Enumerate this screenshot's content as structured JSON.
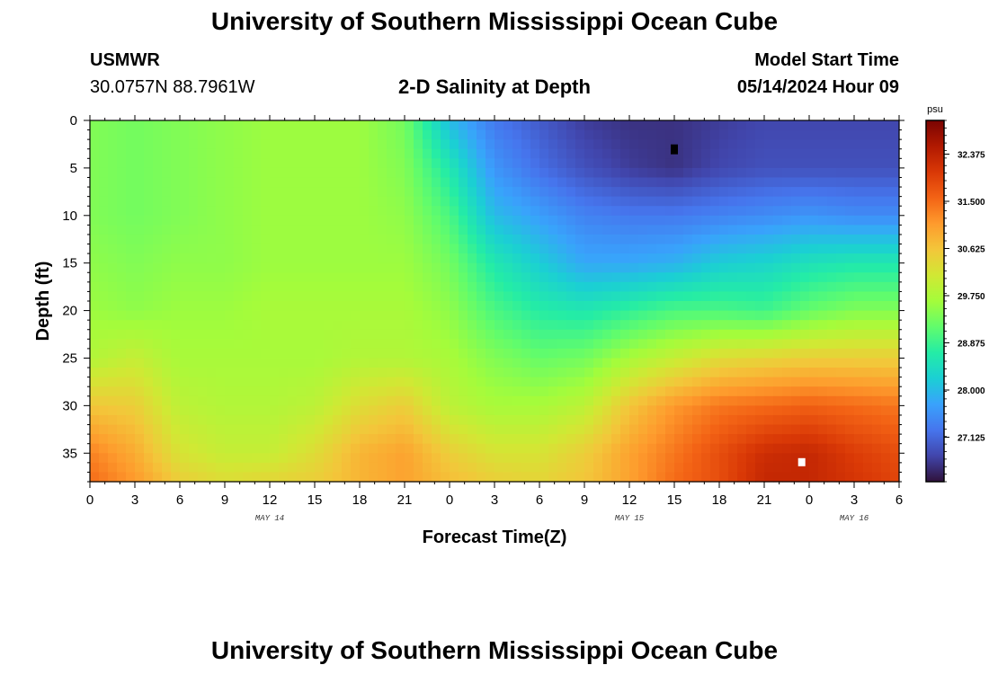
{
  "header": {
    "title": "University of Southern Mississippi Ocean Cube",
    "station": "USMWR",
    "coords": "30.0757N  88.7961W",
    "subtitle": "2-D Salinity at Depth",
    "start_label": "Model Start Time",
    "start_value": "05/14/2024 Hour 09"
  },
  "footer": {
    "title": "University of Southern Mississippi Ocean Cube"
  },
  "colors": {
    "ramp": [
      "#30123b",
      "#4145ab",
      "#4675ed",
      "#39a2fc",
      "#1bcfd4",
      "#24eca6",
      "#61fc6c",
      "#a4fc3b",
      "#d1e834",
      "#f3c63a",
      "#fe9b2d",
      "#f36315",
      "#d93806",
      "#b11901",
      "#7a0402"
    ],
    "marker_min": "#000000",
    "marker_max": "#ffffff"
  },
  "chart_data": {
    "type": "heatmap",
    "title": "2-D Salinity at Depth",
    "xlabel": "Forecast Time(Z)",
    "ylabel": "Depth (ft)",
    "x_hours_range": [
      0,
      54
    ],
    "y_range_ft": [
      0,
      38
    ],
    "x_tick_hours": [
      0,
      3,
      6,
      9,
      12,
      15,
      18,
      21,
      24,
      27,
      30,
      33,
      36,
      39,
      42,
      45,
      48,
      51,
      54
    ],
    "x_tick_labels": [
      "0",
      "3",
      "6",
      "9",
      "12",
      "15",
      "18",
      "21",
      "0",
      "3",
      "6",
      "9",
      "12",
      "15",
      "18",
      "21",
      "0",
      "3",
      "6"
    ],
    "date_labels": [
      {
        "hour": 12,
        "text": "MAY 14"
      },
      {
        "hour": 36,
        "text": "MAY 15"
      },
      {
        "hour": 51,
        "text": "MAY 16"
      }
    ],
    "y_ticks": [
      0,
      5,
      10,
      15,
      20,
      25,
      30,
      35
    ],
    "y_tick_labels": [
      "0",
      "5",
      "10",
      "15",
      "20",
      "25",
      "30",
      "35"
    ],
    "colorbar": {
      "unit": "psu",
      "range": [
        26.3,
        33.0
      ],
      "tick_values": [
        32.375,
        31.5,
        30.625,
        29.75,
        28.875,
        28.0,
        27.125
      ],
      "tick_labels": [
        "32.375",
        "31.500",
        "30.625",
        "29.750",
        "28.875",
        "28.000",
        "27.125"
      ]
    },
    "profile_hours": [
      0,
      3,
      6,
      9,
      12,
      15,
      18,
      21,
      24,
      27,
      30,
      33,
      36,
      39,
      42,
      45,
      48,
      51,
      54
    ],
    "profile_depths_ft": [
      0,
      5,
      10,
      15,
      20,
      25,
      30,
      35,
      38
    ],
    "salinity_psu": [
      [
        29.4,
        29.4,
        29.4,
        29.5,
        29.6,
        29.8,
        30.6,
        31.3,
        31.5
      ],
      [
        29.3,
        29.3,
        29.3,
        29.4,
        29.5,
        30.0,
        30.5,
        30.9,
        31.1
      ],
      [
        29.4,
        29.4,
        29.4,
        29.5,
        29.6,
        29.7,
        29.9,
        30.2,
        30.5
      ],
      [
        29.5,
        29.5,
        29.5,
        29.5,
        29.6,
        29.7,
        29.8,
        30.0,
        30.3
      ],
      [
        29.6,
        29.6,
        29.6,
        29.6,
        29.7,
        29.7,
        29.8,
        30.0,
        30.4
      ],
      [
        29.6,
        29.6,
        29.6,
        29.6,
        29.7,
        29.7,
        29.9,
        30.3,
        30.5
      ],
      [
        29.6,
        29.6,
        29.6,
        29.6,
        29.7,
        29.8,
        30.3,
        30.8,
        30.8
      ],
      [
        29.3,
        29.4,
        29.5,
        29.6,
        29.7,
        29.8,
        30.5,
        31.0,
        31.0
      ],
      [
        28.0,
        28.6,
        29.0,
        29.3,
        29.5,
        29.7,
        29.9,
        30.5,
        30.7
      ],
      [
        27.3,
        27.6,
        28.0,
        28.6,
        29.0,
        29.4,
        29.7,
        30.2,
        30.5
      ],
      [
        27.0,
        27.2,
        27.7,
        28.2,
        28.7,
        29.2,
        29.7,
        30.2,
        30.4
      ],
      [
        26.7,
        26.9,
        27.4,
        27.8,
        28.6,
        29.3,
        29.9,
        30.5,
        30.6
      ],
      [
        26.6,
        26.7,
        27.3,
        27.8,
        28.8,
        29.7,
        30.6,
        31.0,
        31.0
      ],
      [
        26.6,
        26.6,
        27.3,
        27.9,
        29.0,
        30.0,
        31.1,
        31.4,
        31.5
      ],
      [
        26.7,
        26.8,
        27.4,
        28.2,
        29.0,
        30.3,
        31.4,
        31.8,
        31.8
      ],
      [
        26.8,
        26.9,
        27.5,
        28.3,
        28.9,
        30.4,
        31.5,
        32.2,
        32.3
      ],
      [
        26.8,
        26.9,
        27.6,
        28.5,
        29.2,
        30.5,
        31.6,
        32.3,
        32.3
      ],
      [
        26.8,
        26.9,
        27.5,
        28.6,
        29.4,
        30.5,
        31.5,
        32.0,
        32.1
      ],
      [
        26.8,
        26.9,
        27.5,
        28.6,
        29.4,
        30.5,
        31.4,
        31.8,
        31.9
      ]
    ],
    "annotations": [
      {
        "type": "min_marker",
        "hour": 39,
        "depth_ft": 3.0
      },
      {
        "type": "max_marker",
        "hour": 47.5,
        "depth_ft": 36.0
      }
    ]
  }
}
